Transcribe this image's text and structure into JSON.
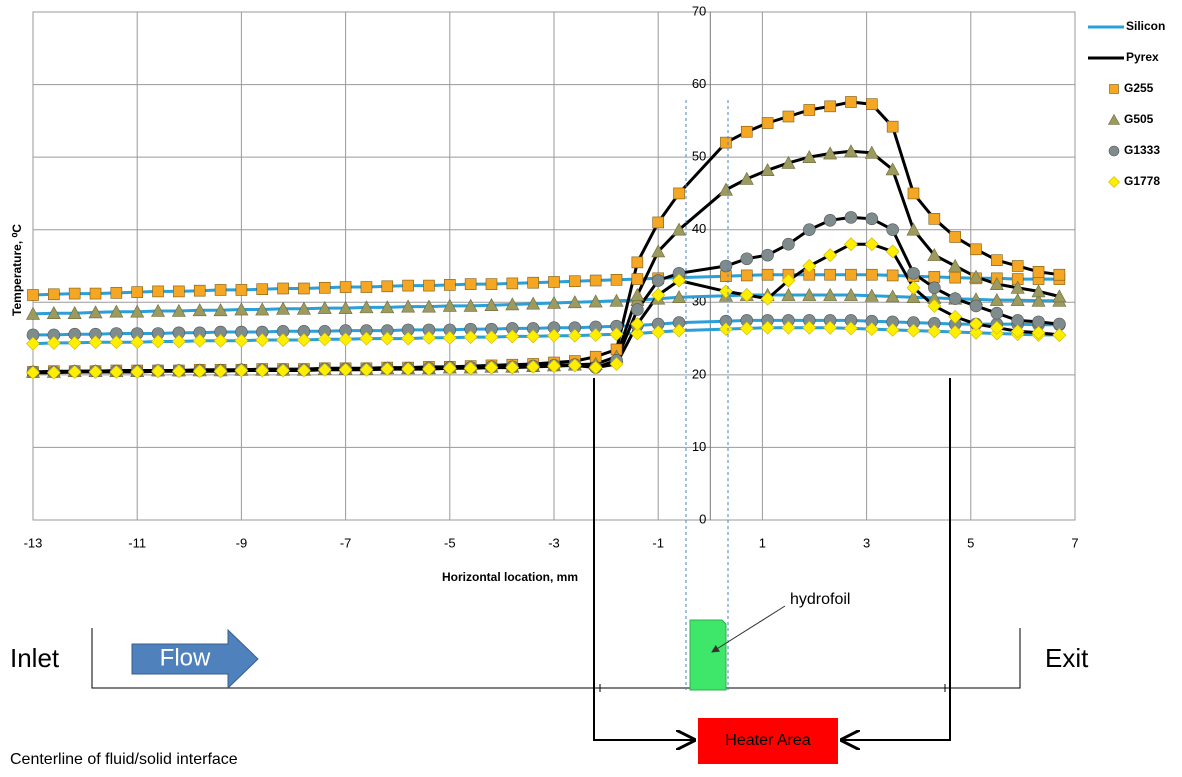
{
  "chart_data": {
    "type": "line",
    "x_label": "Horizontal location, mm",
    "y_label": "Temperature, ⁰C",
    "xlim": [
      -13,
      7
    ],
    "xticks": [
      -13,
      -11,
      -9,
      -7,
      -5,
      -3,
      -1,
      1,
      3,
      5,
      7
    ],
    "ylim": [
      0,
      70
    ],
    "yticks": [
      0,
      10,
      20,
      30,
      40,
      50,
      60,
      70
    ],
    "grid": true,
    "line_styles": [
      {
        "name": "Silicon",
        "color": "#2a9fd8",
        "key": "silicon"
      },
      {
        "name": "Pyrex",
        "color": "#000000",
        "key": "pyrex"
      }
    ],
    "x": [
      -13,
      -12.6,
      -12.2,
      -11.8,
      -11.4,
      -11,
      -10.6,
      -10.2,
      -9.8,
      -9.4,
      -9,
      -8.6,
      -8.2,
      -7.8,
      -7.4,
      -7,
      -6.6,
      -6.2,
      -5.8,
      -5.4,
      -5,
      -4.6,
      -4.2,
      -3.8,
      -3.4,
      -3,
      -2.6,
      -2.2,
      -1.8,
      -1.4,
      -1,
      -0.6,
      0.3,
      0.7,
      1.1,
      1.5,
      1.9,
      2.3,
      2.7,
      3.1,
      3.5,
      3.9,
      4.3,
      4.7,
      5.1,
      5.5,
      5.9,
      6.3,
      6.7
    ],
    "series": [
      {
        "name": "G255",
        "color": "#f5a623",
        "marker": "square",
        "silicon": [
          31.0,
          31.1,
          31.2,
          31.2,
          31.3,
          31.4,
          31.5,
          31.5,
          31.6,
          31.7,
          31.7,
          31.8,
          31.9,
          31.9,
          32.0,
          32.1,
          32.1,
          32.2,
          32.3,
          32.3,
          32.4,
          32.5,
          32.5,
          32.6,
          32.7,
          32.8,
          32.9,
          33.0,
          33.1,
          33.2,
          33.3,
          33.4,
          33.6,
          33.7,
          33.8,
          33.8,
          33.8,
          33.8,
          33.8,
          33.8,
          33.7,
          33.6,
          33.5,
          33.4,
          33.3,
          33.3,
          33.2,
          33.2,
          33.2
        ],
        "pyrex": [
          20.4,
          20.5,
          20.5,
          20.5,
          20.6,
          20.6,
          20.6,
          20.6,
          20.7,
          20.7,
          20.7,
          20.8,
          20.8,
          20.8,
          20.9,
          20.9,
          20.9,
          21.0,
          21.0,
          21.1,
          21.1,
          21.2,
          21.3,
          21.4,
          21.5,
          21.7,
          21.9,
          22.5,
          23.5,
          35.5,
          41,
          45,
          52,
          53.5,
          54.7,
          55.6,
          56.5,
          57,
          57.6,
          57.3,
          54.2,
          45,
          41.5,
          39,
          37.3,
          35.8,
          35,
          34.2,
          33.8
        ]
      },
      {
        "name": "G505",
        "color": "#9c9a5e",
        "marker": "triangle",
        "silicon": [
          28.4,
          28.5,
          28.5,
          28.6,
          28.7,
          28.7,
          28.8,
          28.8,
          28.9,
          28.9,
          29.0,
          29.0,
          29.1,
          29.1,
          29.2,
          29.2,
          29.3,
          29.3,
          29.4,
          29.4,
          29.5,
          29.5,
          29.6,
          29.7,
          29.8,
          29.9,
          30.0,
          30.1,
          30.2,
          30.3,
          30.5,
          30.7,
          30.9,
          31.0,
          31.0,
          31.0,
          31.0,
          31.0,
          31.0,
          30.9,
          30.8,
          30.7,
          30.6,
          30.5,
          30.4,
          30.3,
          30.3,
          30.2,
          30.2
        ],
        "pyrex": [
          20.4,
          20.4,
          20.5,
          20.5,
          20.5,
          20.5,
          20.6,
          20.6,
          20.6,
          20.6,
          20.7,
          20.7,
          20.7,
          20.7,
          20.8,
          20.8,
          20.8,
          20.9,
          20.9,
          20.9,
          21.0,
          21.0,
          21.1,
          21.1,
          21.2,
          21.3,
          21.4,
          21.5,
          22.5,
          31,
          37,
          40,
          45.5,
          47,
          48.2,
          49.2,
          50,
          50.5,
          50.8,
          50.6,
          48.3,
          40,
          36.5,
          35,
          33.5,
          32.5,
          32,
          31.5,
          30.8
        ]
      },
      {
        "name": "G1333",
        "color": "#7f8c8d",
        "marker": "circle",
        "silicon": [
          25.5,
          25.5,
          25.6,
          25.6,
          25.7,
          25.7,
          25.7,
          25.8,
          25.8,
          25.9,
          25.9,
          25.9,
          26.0,
          26.0,
          26.0,
          26.1,
          26.1,
          26.1,
          26.2,
          26.2,
          26.2,
          26.3,
          26.3,
          26.4,
          26.4,
          26.5,
          26.5,
          26.6,
          26.7,
          26.8,
          27.0,
          27.2,
          27.4,
          27.5,
          27.5,
          27.5,
          27.5,
          27.5,
          27.5,
          27.4,
          27.3,
          27.2,
          27.1,
          27.0,
          27.0,
          27.0,
          27.0,
          26.9,
          26.9
        ],
        "pyrex": [
          20.4,
          20.4,
          20.5,
          20.5,
          20.5,
          20.5,
          20.6,
          20.6,
          20.6,
          20.6,
          20.7,
          20.7,
          20.7,
          20.7,
          20.8,
          20.8,
          20.8,
          20.9,
          20.9,
          20.9,
          21.0,
          21.0,
          21.1,
          21.1,
          21.2,
          21.3,
          21.4,
          21,
          22,
          29,
          33,
          34,
          35,
          36,
          36.5,
          38,
          40,
          41.3,
          41.7,
          41.5,
          40,
          34,
          32,
          30.5,
          29.5,
          28.5,
          27.5,
          27.3,
          27
        ]
      },
      {
        "name": "G1778",
        "color": "#ffee00",
        "marker": "diamond",
        "silicon": [
          24.3,
          24.4,
          24.4,
          24.5,
          24.5,
          24.5,
          24.6,
          24.6,
          24.7,
          24.7,
          24.7,
          24.8,
          24.8,
          24.8,
          24.9,
          24.9,
          25.0,
          25.0,
          25.0,
          25.1,
          25.1,
          25.2,
          25.2,
          25.3,
          25.3,
          25.4,
          25.4,
          25.5,
          25.6,
          25.7,
          25.9,
          26.1,
          26.3,
          26.4,
          26.5,
          26.5,
          26.5,
          26.5,
          26.4,
          26.3,
          26.2,
          26.1,
          26.0,
          25.9,
          25.8,
          25.7,
          25.6,
          25.5,
          25.5
        ],
        "pyrex": [
          20.3,
          20.3,
          20.4,
          20.4,
          20.4,
          20.4,
          20.5,
          20.5,
          20.5,
          20.5,
          20.6,
          20.6,
          20.6,
          20.6,
          20.7,
          20.7,
          20.7,
          20.8,
          20.8,
          20.8,
          20.9,
          20.9,
          21.0,
          21.0,
          21.1,
          21.2,
          21.3,
          21,
          21.5,
          27,
          31,
          33,
          31.5,
          31,
          30.5,
          33,
          35,
          36.5,
          38,
          38,
          37,
          32,
          29.5,
          28,
          27,
          26.5,
          26,
          25.8,
          25.5
        ]
      }
    ]
  },
  "diagram": {
    "inlet": "Inlet",
    "flow": "Flow",
    "exit": "Exit",
    "hydrofoil": "hydrofoil",
    "heater": "Heater Area",
    "centerline": "Centerline of fluid/solid interface"
  }
}
